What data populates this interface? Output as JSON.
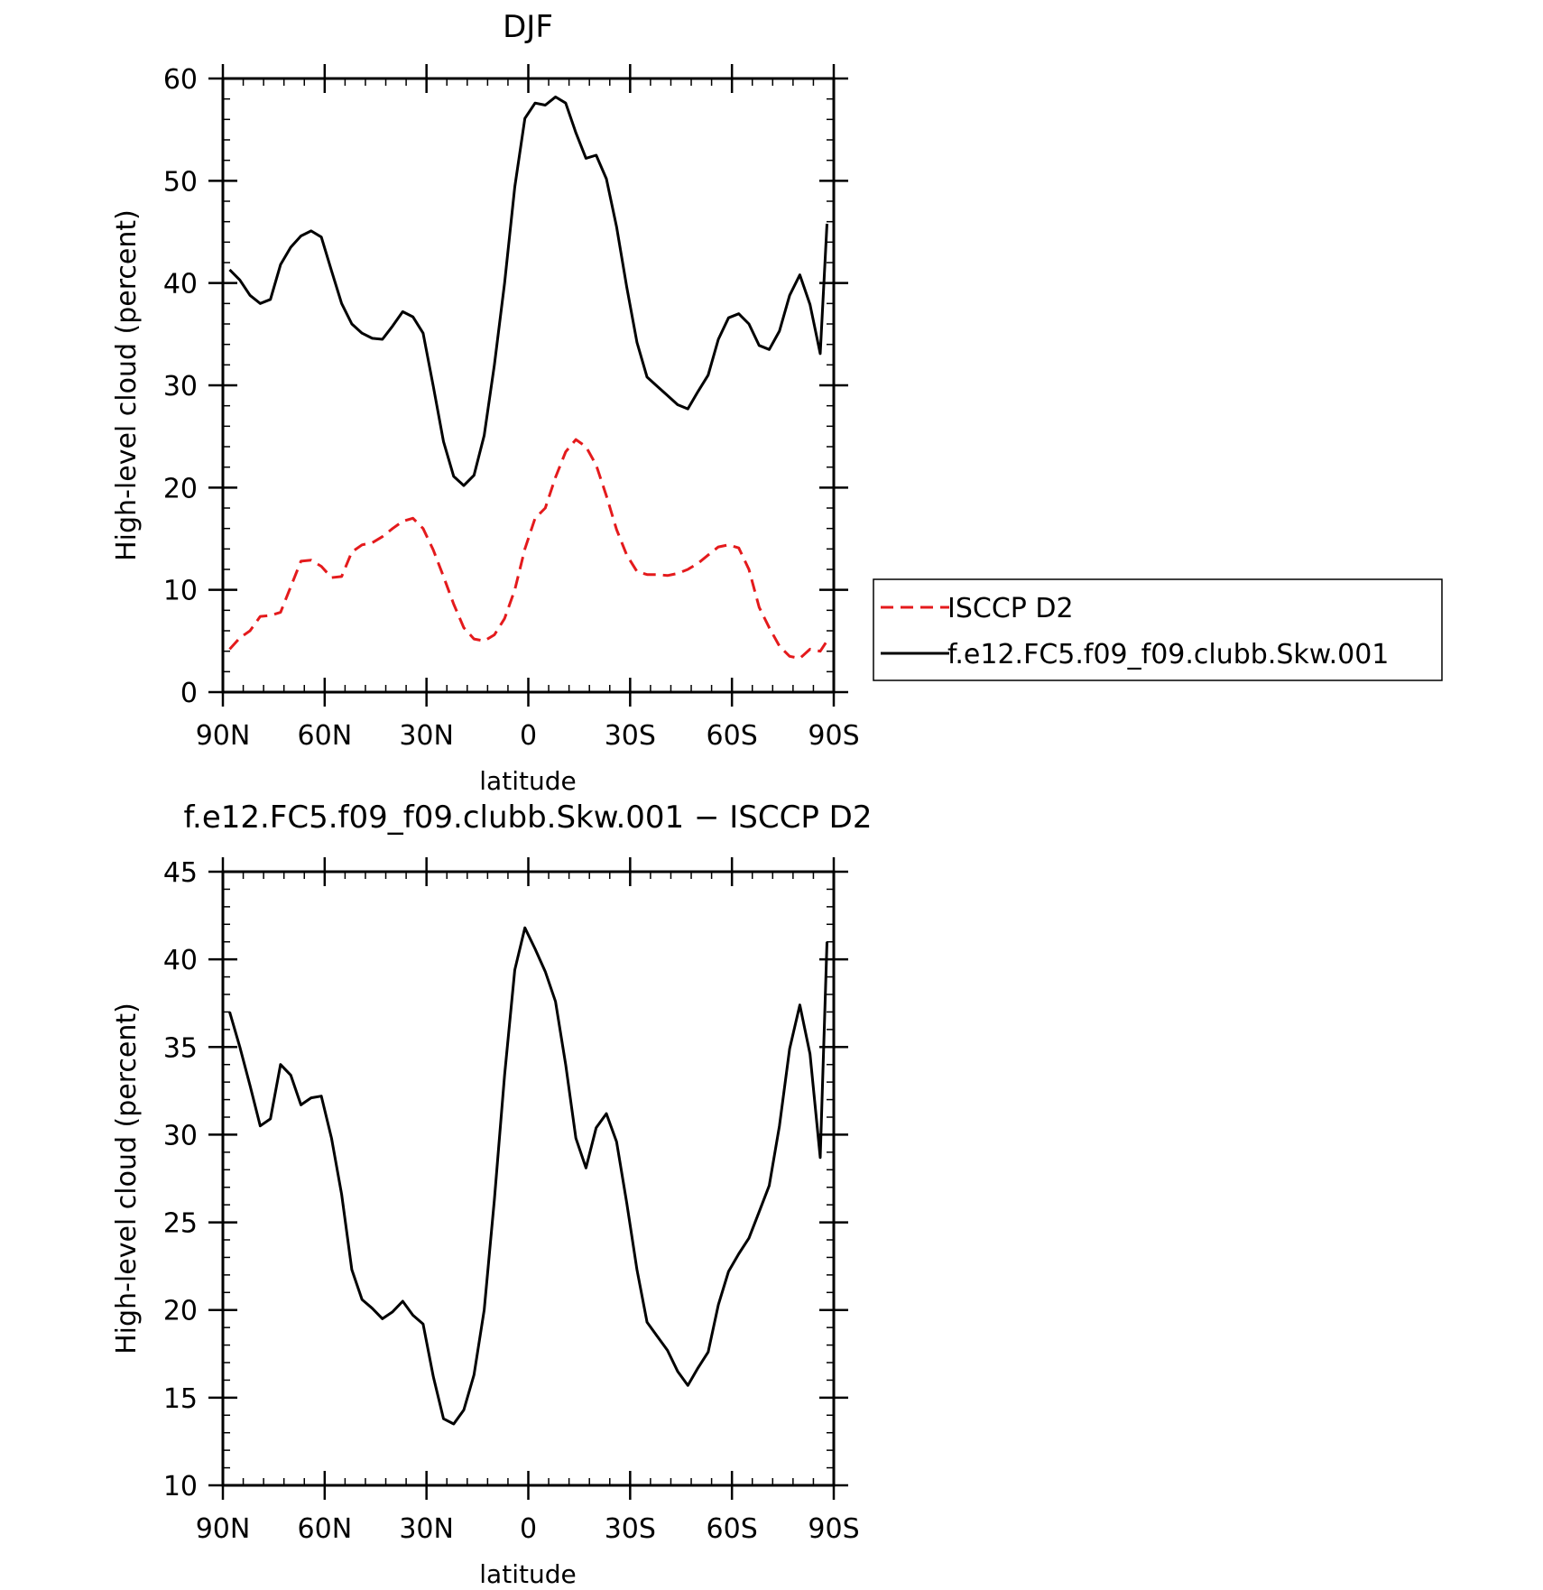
{
  "chart_data": [
    {
      "type": "line",
      "title": "DJF",
      "xlabel": "latitude",
      "ylabel": "High-level cloud (percent)",
      "xlim": [
        90,
        -90
      ],
      "ylim": [
        0,
        60
      ],
      "xticks": [
        90,
        60,
        30,
        0,
        -30,
        -60,
        -90
      ],
      "xtick_labels": [
        "90N",
        "60N",
        "30N",
        "0",
        "30S",
        "60S",
        "90S"
      ],
      "yticks": [
        0,
        10,
        20,
        30,
        40,
        50,
        60
      ],
      "ytick_labels": [
        "0",
        "10",
        "20",
        "30",
        "40",
        "50",
        "60"
      ],
      "grid": false,
      "legend_position": "right",
      "series": [
        {
          "name": "ISCCP D2",
          "color": "#e41a1c",
          "dash": "dashed",
          "x": [
            88,
            85,
            82,
            79,
            76,
            73,
            70,
            67,
            64,
            61,
            58,
            55,
            52,
            49,
            46,
            43,
            40,
            37,
            34,
            31,
            28,
            25,
            22,
            19,
            16,
            13,
            10,
            7,
            4,
            1,
            -2,
            -5,
            -8,
            -11,
            -14,
            -17,
            -20,
            -23,
            -26,
            -29,
            -32,
            -35,
            -38,
            -41,
            -44,
            -47,
            -50,
            -53,
            -56,
            -59,
            -62,
            -65,
            -68,
            -71,
            -74,
            -77,
            -80,
            -83,
            -86,
            -88
          ],
          "y": [
            4.2,
            5.3,
            6.0,
            7.4,
            7.5,
            7.8,
            10.3,
            12.8,
            12.9,
            12.3,
            11.2,
            11.3,
            13.7,
            14.4,
            14.6,
            15.2,
            16.0,
            16.7,
            17.0,
            16.0,
            13.9,
            11.3,
            8.6,
            6.3,
            5.2,
            5.0,
            5.6,
            7.2,
            10.0,
            14.0,
            17.0,
            18.0,
            21.0,
            23.5,
            24.7,
            24.0,
            22.2,
            19.2,
            15.9,
            13.4,
            11.8,
            11.5,
            11.5,
            11.4,
            11.6,
            12.0,
            12.6,
            13.4,
            14.2,
            14.4,
            14.1,
            12.0,
            8.3,
            6.3,
            4.5,
            3.5,
            3.3,
            4.2,
            4.0,
            5.0
          ]
        },
        {
          "name": "f.e12.FC5.f09_f09.clubb.Skw.001",
          "color": "#000000",
          "dash": "solid",
          "x": [
            88,
            85,
            82,
            79,
            76,
            73,
            70,
            67,
            64,
            61,
            58,
            55,
            52,
            49,
            46,
            43,
            40,
            37,
            34,
            31,
            28,
            25,
            22,
            19,
            16,
            13,
            10,
            7,
            4,
            1,
            -2,
            -5,
            -8,
            -11,
            -14,
            -17,
            -20,
            -23,
            -26,
            -29,
            -32,
            -35,
            -38,
            -41,
            -44,
            -47,
            -50,
            -53,
            -56,
            -59,
            -62,
            -65,
            -68,
            -71,
            -74,
            -77,
            -80,
            -83,
            -86,
            -88
          ],
          "y": [
            41.3,
            40.3,
            38.8,
            38.0,
            38.4,
            41.8,
            43.5,
            44.6,
            45.1,
            44.5,
            41.2,
            38.0,
            36.0,
            35.1,
            34.6,
            34.5,
            35.8,
            37.2,
            36.7,
            35.1,
            29.9,
            24.5,
            21.1,
            20.2,
            21.2,
            25.1,
            32.0,
            40.0,
            49.4,
            56.1,
            57.6,
            57.4,
            58.2,
            57.6,
            54.7,
            52.2,
            52.5,
            50.2,
            45.5,
            39.6,
            34.2,
            30.8,
            29.9,
            29.0,
            28.1,
            27.7,
            29.4,
            31.0,
            34.5,
            36.6,
            37.0,
            36.0,
            33.9,
            33.5,
            35.3,
            38.8,
            40.8,
            37.9,
            33.1,
            45.8
          ]
        }
      ]
    },
    {
      "type": "line",
      "title": "f.e12.FC5.f09_f09.clubb.Skw.001 − ISCCP D2",
      "xlabel": "latitude",
      "ylabel": "High-level cloud (percent)",
      "xlim": [
        90,
        -90
      ],
      "ylim": [
        10,
        45
      ],
      "xticks": [
        90,
        60,
        30,
        0,
        -30,
        -60,
        -90
      ],
      "xtick_labels": [
        "90N",
        "60N",
        "30N",
        "0",
        "30S",
        "60S",
        "90S"
      ],
      "yticks": [
        10,
        15,
        20,
        25,
        30,
        35,
        40,
        45
      ],
      "ytick_labels": [
        "10",
        "15",
        "20",
        "25",
        "30",
        "35",
        "40",
        "45"
      ],
      "grid": false,
      "series": [
        {
          "color": "#000000",
          "dash": "solid",
          "x": [
            88,
            85,
            82,
            79,
            76,
            73,
            70,
            67,
            64,
            61,
            58,
            55,
            52,
            49,
            46,
            43,
            40,
            37,
            34,
            31,
            28,
            25,
            22,
            19,
            16,
            13,
            10,
            7,
            4,
            1,
            -2,
            -5,
            -8,
            -11,
            -14,
            -17,
            -20,
            -23,
            -26,
            -29,
            -32,
            -35,
            -38,
            -41,
            -44,
            -47,
            -50,
            -53,
            -56,
            -59,
            -62,
            -65,
            -68,
            -71,
            -74,
            -77,
            -80,
            -83,
            -86,
            -88
          ],
          "y": [
            37.0,
            35.0,
            32.8,
            30.5,
            30.9,
            34.0,
            33.4,
            31.7,
            32.1,
            32.2,
            29.8,
            26.6,
            22.3,
            20.6,
            20.1,
            19.5,
            19.9,
            20.5,
            19.7,
            19.2,
            16.2,
            13.8,
            13.5,
            14.3,
            16.3,
            20.0,
            26.3,
            33.4,
            39.4,
            41.8,
            40.6,
            39.3,
            37.6,
            34.0,
            29.8,
            28.1,
            30.4,
            31.2,
            29.6,
            26.1,
            22.3,
            19.3,
            18.5,
            17.7,
            16.5,
            15.7,
            16.7,
            17.6,
            20.3,
            22.2,
            23.2,
            24.1,
            25.6,
            27.1,
            30.5,
            34.9,
            37.4,
            34.6,
            28.7,
            41.0
          ]
        }
      ]
    }
  ]
}
